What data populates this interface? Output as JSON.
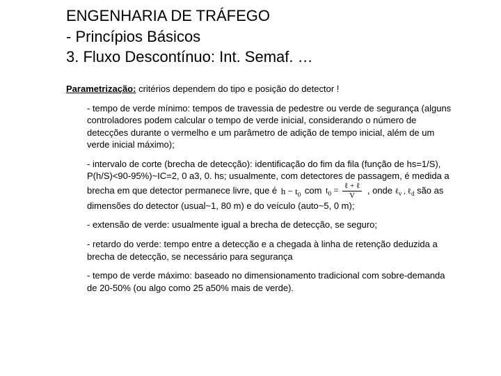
{
  "title": {
    "line1": "ENGENHARIA DE TRÁFEGO",
    "line2": "- Princípios Básicos",
    "line3": "3. Fluxo Descontínuo: Int. Semaf. …"
  },
  "lead": {
    "label": "Parametrização:",
    "rest": " critérios dependem do tipo e posição do detector !"
  },
  "bullets": {
    "b1": "- tempo de verde mínimo: tempos de travessia de pedestre ou verde de segurança (alguns controladores podem calcular o tempo de verde inicial, considerando o número de detecções durante o vermelho e um parâmetro de adição de tempo inicial, além de um verde inicial máximo);",
    "b2a": "- intervalo de corte (brecha de detecção): identificação do fim da fila (função de hs=1/S), P(h/S)<90-95%)~IC=2, 0 a3, 0. hs; usualmente, com detectores de passagem, é medida a brecha em que detector permanece livre, que é ",
    "b2_f1_lhs": "h − t",
    "b2_f1_sub": "0",
    "b2_mid1": " com ",
    "b2_f2_lhs": "t",
    "b2_f2_sub": "0",
    "b2_f2_eq": " = ",
    "b2_f2_num": "ℓ + ℓ",
    "b2_f2_den": "V",
    "b2_mid2": " , onde ",
    "b2_vars": "ℓ , ℓ",
    "b2_vars_sub1": "v",
    "b2_vars_sub2": "d",
    "b2_end": " são as dimensões do detector (usual~1, 80 m) e do veículo (auto~5, 0 m);",
    "b3": "- extensão de verde: usualmente igual a brecha de detecção, se seguro;",
    "b4": "- retardo do verde: tempo entre a detecção e a chegada à linha de retenção deduzida a brecha de detecção, se necessário para segurança",
    "b5": "- tempo de verde máximo: baseado no dimensionamento tradicional com sobre-demanda de 20-50% (ou algo como 25 a50% mais de verde)."
  }
}
